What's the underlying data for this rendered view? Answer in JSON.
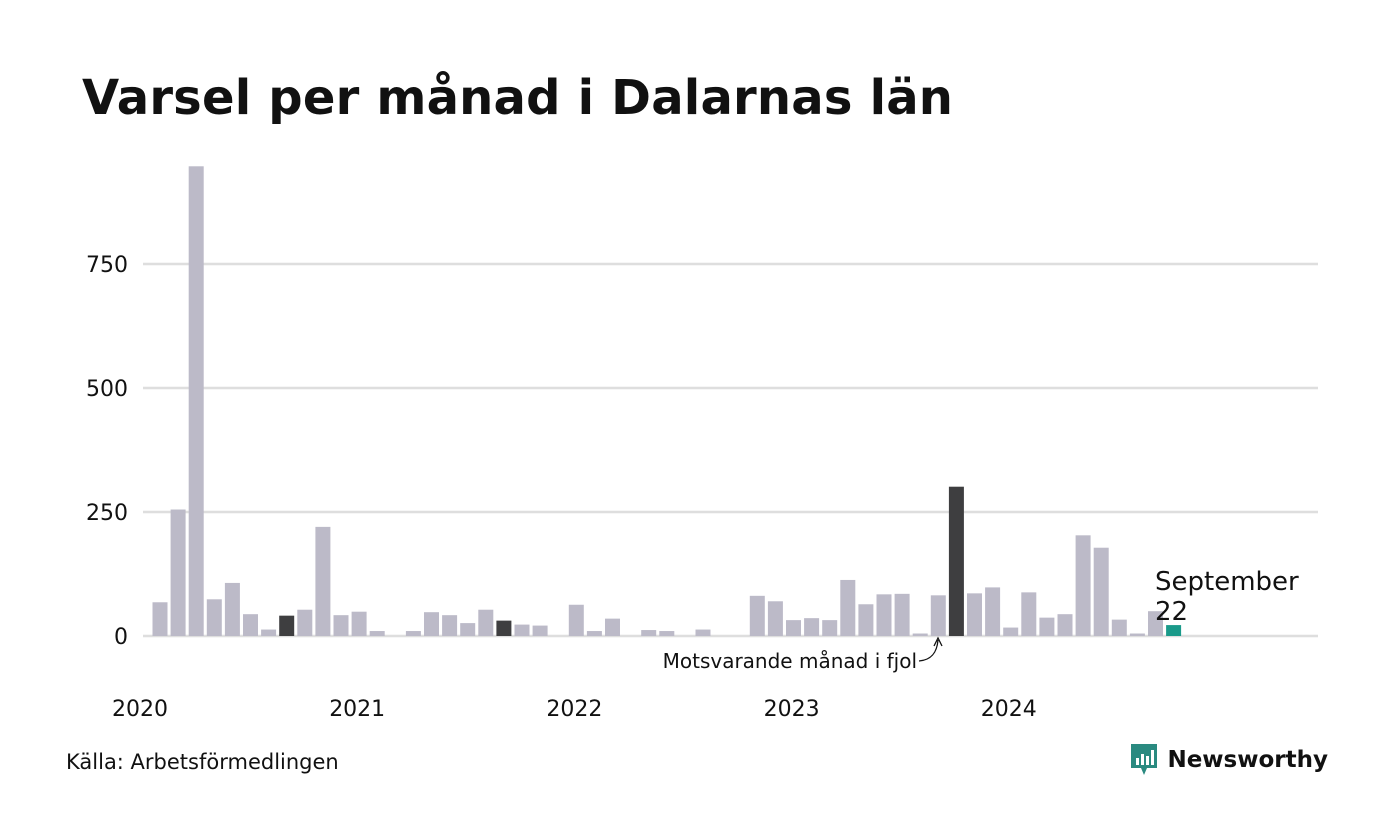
{
  "title": "Varsel per månad i Dalarnas län",
  "source": "Källa: Arbetsförmedlingen",
  "brand": {
    "name": "Newsworthy",
    "icon": "newsworthy-logo-icon",
    "color": "#2a8a80"
  },
  "colors": {
    "default_bar": "#bcbac8",
    "highlight_bar": "#3e3e40",
    "latest_bar": "#1a9a8a",
    "grid": "#dedede"
  },
  "chart_data": {
    "type": "bar",
    "title": "Varsel per månad i Dalarnas län",
    "xlabel": "",
    "ylabel": "",
    "ylim": [
      0,
      950
    ],
    "yticks": [
      0,
      250,
      500,
      750
    ],
    "xtick_labels": [
      "2020",
      "2021",
      "2022",
      "2023",
      "2024"
    ],
    "grid": true,
    "series": [
      {
        "values": [
          68,
          255,
          947,
          74,
          107,
          44,
          13,
          41,
          53,
          220,
          42,
          49,
          10,
          0,
          10,
          48,
          42,
          26,
          53,
          31,
          23,
          21,
          0,
          63,
          10,
          35,
          0,
          12,
          10,
          0,
          13,
          0,
          0,
          81,
          70,
          32,
          36,
          32,
          113,
          64,
          84,
          85,
          5,
          82,
          301,
          86,
          98,
          17,
          88,
          37,
          44,
          203,
          178,
          33,
          5,
          50,
          22
        ]
      }
    ],
    "start": "2020-01",
    "highlighted_indices": [
      7,
      19,
      44
    ],
    "latest_index": 56,
    "annotation": "Motsvarande månad i fjol",
    "latest_label": {
      "month": "September",
      "value": "22"
    }
  }
}
